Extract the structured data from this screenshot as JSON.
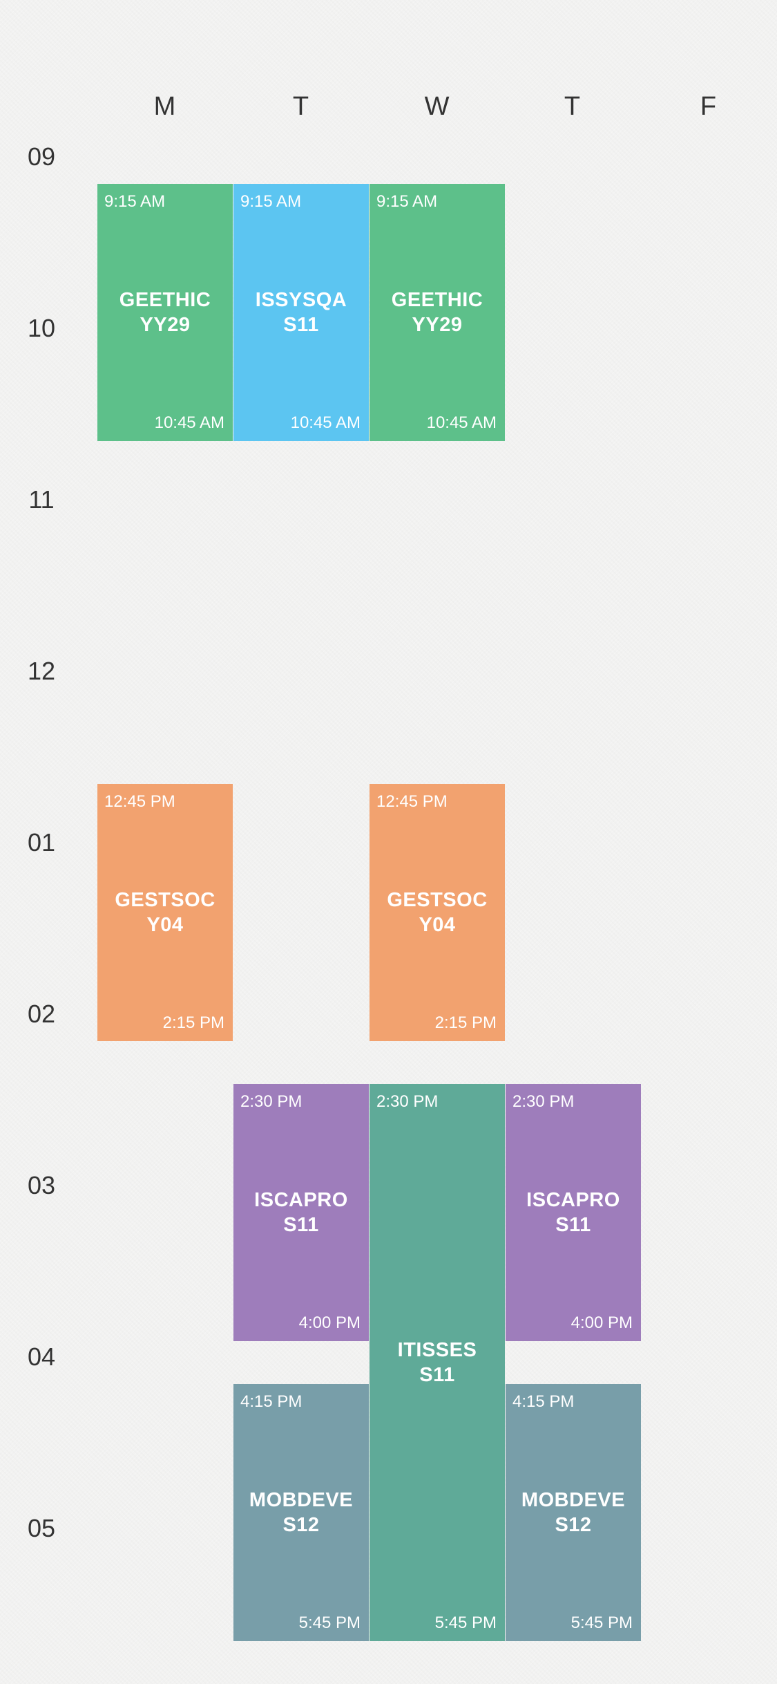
{
  "days": [
    "M",
    "T",
    "W",
    "T",
    "F"
  ],
  "hours": [
    "09",
    "10",
    "11",
    "12",
    "01",
    "02",
    "03",
    "04",
    "05"
  ],
  "colors": {
    "green": "#5dc08a",
    "blue": "#5cc5f1",
    "orange": "#f2a26f",
    "purple": "#9e7dbb",
    "teal": "#5faa98",
    "slate": "#789ea9"
  },
  "events": [
    {
      "day": "M",
      "start": "9:15 AM",
      "end": "10:45 AM",
      "title1": "GEETHIC",
      "title2": "YY29"
    },
    {
      "day": "T",
      "start": "9:15 AM",
      "end": "10:45 AM",
      "title1": "ISSYSQA",
      "title2": "S11"
    },
    {
      "day": "W",
      "start": "9:15 AM",
      "end": "10:45 AM",
      "title1": "GEETHIC",
      "title2": "YY29"
    },
    {
      "day": "M",
      "start": "12:45 PM",
      "end": "2:15 PM",
      "title1": "GESTSOC",
      "title2": "Y04"
    },
    {
      "day": "W",
      "start": "12:45 PM",
      "end": "2:15 PM",
      "title1": "GESTSOC",
      "title2": "Y04"
    },
    {
      "day": "T",
      "start": "2:30 PM",
      "end": "4:00 PM",
      "title1": "ISCAPRO",
      "title2": "S11"
    },
    {
      "day": "W",
      "start": "2:30 PM",
      "end": "5:45 PM",
      "title1": "ITISSES",
      "title2": "S11"
    },
    {
      "day": "T",
      "start": "2:30 PM",
      "end": "4:00 PM",
      "title1": "ISCAPRO",
      "title2": "S11"
    },
    {
      "day": "T",
      "start": "4:15 PM",
      "end": "5:45 PM",
      "title1": "MOBDEVE",
      "title2": "S12"
    },
    {
      "day": "T",
      "start": "4:15 PM",
      "end": "5:45 PM",
      "title1": "MOBDEVE",
      "title2": "S12"
    }
  ]
}
